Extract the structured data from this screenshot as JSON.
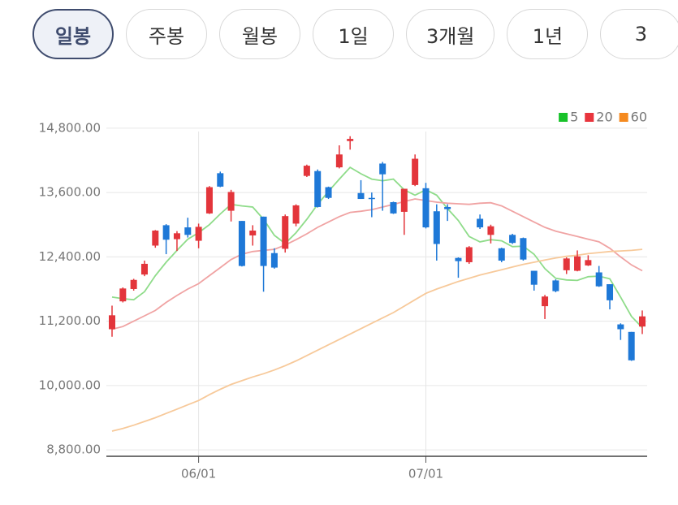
{
  "tabs": [
    {
      "label": "일봉",
      "selected": true
    },
    {
      "label": "주봉",
      "selected": false
    },
    {
      "label": "월봉",
      "selected": false
    },
    {
      "label": "1일",
      "selected": false
    },
    {
      "label": "3개월",
      "selected": false
    },
    {
      "label": "1년",
      "selected": false
    },
    {
      "label": "3",
      "selected": false
    }
  ],
  "chart_data": {
    "type": "candlestick",
    "categories": [
      null,
      null,
      null,
      null,
      null,
      null,
      null,
      null,
      "06/01",
      null,
      null,
      null,
      null,
      null,
      null,
      null,
      null,
      null,
      null,
      null,
      null,
      null,
      null,
      null,
      null,
      null,
      null,
      null,
      null,
      "07/01",
      null,
      null,
      null,
      null,
      null,
      null,
      null,
      null,
      null,
      null,
      null,
      null,
      null,
      null,
      null,
      null,
      null,
      null,
      null,
      null
    ],
    "open": [
      11050,
      11570,
      11800,
      12070,
      12610,
      12990,
      12730,
      12950,
      12700,
      13210,
      13960,
      13260,
      13070,
      12800,
      13150,
      12470,
      12550,
      13020,
      13910,
      14000,
      13700,
      14070,
      14560,
      13590,
      13500,
      14140,
      13420,
      13240,
      13740,
      13680,
      13250,
      13330,
      12380,
      12300,
      13110,
      12810,
      12560,
      12810,
      12750,
      12140,
      11480,
      11960,
      12150,
      12140,
      12240,
      12110,
      11890,
      11140,
      11000,
      11100
    ],
    "high": [
      11490,
      11830,
      11990,
      12330,
      12900,
      13010,
      12880,
      13130,
      13020,
      13720,
      13990,
      13650,
      13070,
      12990,
      13150,
      12560,
      13190,
      13380,
      14120,
      14030,
      13710,
      14480,
      14650,
      13830,
      13600,
      14170,
      13430,
      13670,
      14310,
      13780,
      13380,
      13380,
      12390,
      12600,
      13190,
      13000,
      12570,
      12830,
      12760,
      12140,
      11690,
      11980,
      12390,
      12520,
      12430,
      12230,
      11890,
      11160,
      11000,
      11400
    ],
    "low": [
      10910,
      11550,
      11770,
      12040,
      12570,
      12450,
      12510,
      12760,
      12560,
      13200,
      13700,
      13060,
      12220,
      12610,
      11750,
      12180,
      12480,
      12970,
      13890,
      13320,
      13480,
      14050,
      14400,
      13480,
      13140,
      13260,
      13200,
      12810,
      13720,
      12930,
      12330,
      13070,
      12010,
      12270,
      12920,
      12650,
      12300,
      12640,
      12330,
      11770,
      11240,
      11740,
      12080,
      12130,
      12230,
      11840,
      11420,
      10850,
      10460,
      10960
    ],
    "close": [
      11310,
      11810,
      11970,
      12270,
      12890,
      12720,
      12840,
      12810,
      12960,
      13700,
      13710,
      13610,
      12230,
      12890,
      12230,
      12200,
      13160,
      13360,
      14100,
      13330,
      13500,
      14310,
      14600,
      13480,
      13480,
      13940,
      13210,
      13670,
      14230,
      12950,
      12640,
      13290,
      12320,
      12580,
      12950,
      12970,
      12330,
      12660,
      12350,
      11880,
      11660,
      11760,
      12370,
      12410,
      12340,
      11850,
      11590,
      11050,
      10470,
      11290
    ],
    "up_color": "#e3353b",
    "down_color": "#1e78d7",
    "series": [
      {
        "name": "5",
        "color": "#8fdc8a",
        "legend_color": "#18c22a",
        "values": [
          11650,
          11620,
          11600,
          11750,
          12050,
          12300,
          12520,
          12730,
          12850,
          13000,
          13200,
          13380,
          13350,
          13330,
          13100,
          12800,
          12650,
          12850,
          13100,
          13380,
          13620,
          13850,
          14070,
          13950,
          13850,
          13820,
          13850,
          13650,
          13550,
          13650,
          13550,
          13300,
          13080,
          12780,
          12680,
          12720,
          12700,
          12590,
          12600,
          12450,
          12180,
          12000,
          11970,
          11960,
          12030,
          12040,
          11990,
          11650,
          11290,
          11080
        ]
      },
      {
        "name": "20",
        "color": "#f0a3a3",
        "legend_color": "#e8343c",
        "values": [
          11050,
          11100,
          11200,
          11300,
          11400,
          11550,
          11680,
          11800,
          11900,
          12050,
          12200,
          12350,
          12450,
          12500,
          12520,
          12540,
          12620,
          12720,
          12830,
          12950,
          13050,
          13150,
          13230,
          13250,
          13280,
          13330,
          13380,
          13430,
          13480,
          13450,
          13420,
          13400,
          13390,
          13380,
          13400,
          13410,
          13350,
          13250,
          13150,
          13050,
          12950,
          12880,
          12830,
          12780,
          12730,
          12680,
          12560,
          12400,
          12250,
          12140
        ]
      },
      {
        "name": "60",
        "color": "#f7c99a",
        "legend_color": "#f58a1f",
        "values": [
          9150,
          9200,
          9260,
          9330,
          9400,
          9480,
          9560,
          9640,
          9720,
          9830,
          9930,
          10020,
          10090,
          10160,
          10220,
          10290,
          10370,
          10460,
          10560,
          10660,
          10760,
          10860,
          10960,
          11060,
          11160,
          11260,
          11360,
          11480,
          11600,
          11720,
          11800,
          11870,
          11940,
          12000,
          12060,
          12110,
          12160,
          12210,
          12260,
          12300,
          12340,
          12380,
          12410,
          12430,
          12460,
          12480,
          12500,
          12510,
          12520,
          12540
        ]
      }
    ],
    "ylim": [
      8680,
      14980
    ],
    "yticks": [
      {
        "value": 8800,
        "label": "8,800.00"
      },
      {
        "value": 10000,
        "label": "10,000.00"
      },
      {
        "value": 11200,
        "label": "11,200.00"
      },
      {
        "value": 12400,
        "label": "12,400.00"
      },
      {
        "value": 13600,
        "label": "13,600.00"
      },
      {
        "value": 14800,
        "label": "14,800.00"
      }
    ],
    "grid": true,
    "legend": "top-right"
  }
}
